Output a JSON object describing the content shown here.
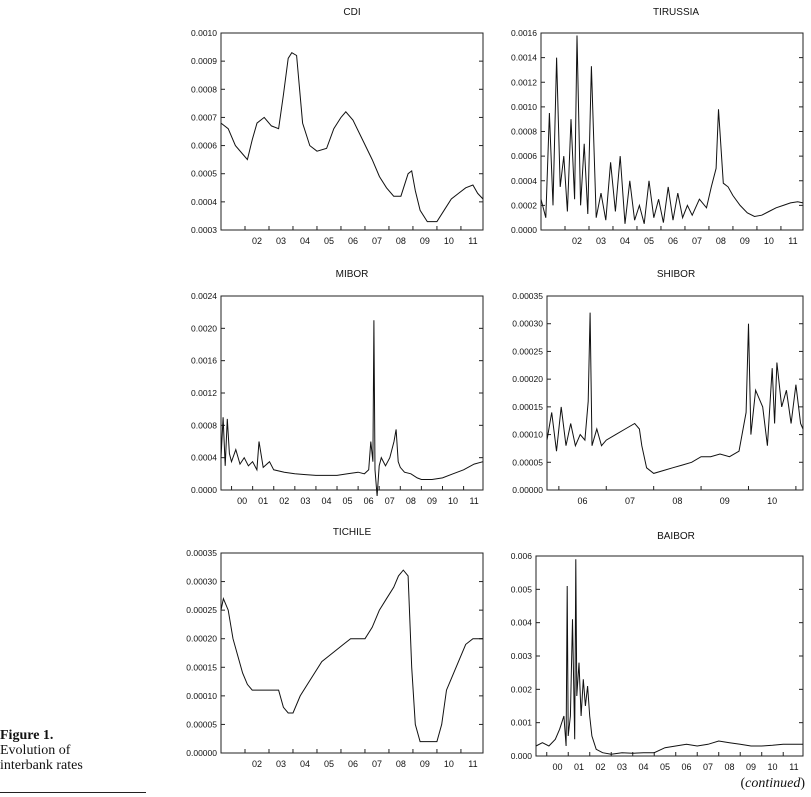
{
  "caption": {
    "figure": "Figure 1.",
    "line1": "Evolution of",
    "line2": "interbank rates"
  },
  "continued": {
    "open": "(",
    "word": "continued",
    "close": ")"
  },
  "chart_data": [
    {
      "type": "line",
      "title": "CDI",
      "ylim": [
        0.0003,
        0.001
      ],
      "yticks": [
        "0.0003",
        "0.0004",
        "0.0005",
        "0.0006",
        "0.0007",
        "0.0008",
        "0.0009",
        "0.0010"
      ],
      "xlim": [
        2001.0,
        2011.92
      ],
      "xticks": [
        {
          "label": "02",
          "x": 2002.0
        },
        {
          "label": "03",
          "x": 2003.0
        },
        {
          "label": "04",
          "x": 2004.0
        },
        {
          "label": "05",
          "x": 2005.0
        },
        {
          "label": "06",
          "x": 2006.0
        },
        {
          "label": "07",
          "x": 2007.0
        },
        {
          "label": "08",
          "x": 2008.0
        },
        {
          "label": "09",
          "x": 2009.0
        },
        {
          "label": "10",
          "x": 2010.0
        },
        {
          "label": "11",
          "x": 2011.0
        }
      ],
      "series": [
        {
          "x": [
            2001.0,
            2001.3,
            2001.6,
            2001.9,
            2002.1,
            2002.3,
            2002.5,
            2002.8,
            2003.1,
            2003.4,
            2003.6,
            2003.8,
            2003.95,
            2004.15,
            2004.4,
            2004.7,
            2005.0,
            2005.4,
            2005.7,
            2006.0,
            2006.2,
            2006.5,
            2006.9,
            2007.3,
            2007.6,
            2007.9,
            2008.2,
            2008.5,
            2008.8,
            2008.95,
            2009.1,
            2009.3,
            2009.6,
            2010.0,
            2010.3,
            2010.6,
            2010.9,
            2011.2,
            2011.5,
            2011.7,
            2011.92
          ],
          "y": [
            0.00068,
            0.00066,
            0.0006,
            0.00057,
            0.00055,
            0.00062,
            0.00068,
            0.0007,
            0.00067,
            0.00066,
            0.00078,
            0.00091,
            0.00093,
            0.00092,
            0.00068,
            0.0006,
            0.00058,
            0.00059,
            0.00066,
            0.0007,
            0.00072,
            0.00069,
            0.00062,
            0.00055,
            0.00049,
            0.00045,
            0.00042,
            0.00042,
            0.0005,
            0.00051,
            0.00044,
            0.00037,
            0.00033,
            0.00033,
            0.00037,
            0.00041,
            0.00043,
            0.00045,
            0.00046,
            0.00043,
            0.00041
          ]
        }
      ]
    },
    {
      "type": "line",
      "title": "TIRUSSIA",
      "ylim": [
        0.0,
        0.0016
      ],
      "yticks": [
        "0.0000",
        "0.0002",
        "0.0004",
        "0.0006",
        "0.0008",
        "0.0010",
        "0.0012",
        "0.0014",
        "0.0016"
      ],
      "xlim": [
        2001.0,
        2011.92
      ],
      "xticks": [
        {
          "label": "02",
          "x": 2002.0
        },
        {
          "label": "03",
          "x": 2003.0
        },
        {
          "label": "04",
          "x": 2004.0
        },
        {
          "label": "05",
          "x": 2005.0
        },
        {
          "label": "06",
          "x": 2006.0
        },
        {
          "label": "07",
          "x": 2007.0
        },
        {
          "label": "08",
          "x": 2008.0
        },
        {
          "label": "09",
          "x": 2009.0
        },
        {
          "label": "10",
          "x": 2010.0
        },
        {
          "label": "11",
          "x": 2011.0
        }
      ],
      "series": [
        {
          "x": [
            2001.0,
            2001.2,
            2001.35,
            2001.5,
            2001.65,
            2001.8,
            2001.95,
            2002.1,
            2002.25,
            2002.4,
            2002.5,
            2002.65,
            2002.8,
            2002.95,
            2003.1,
            2003.3,
            2003.5,
            2003.7,
            2003.9,
            2004.1,
            2004.3,
            2004.5,
            2004.7,
            2004.9,
            2005.1,
            2005.3,
            2005.5,
            2005.7,
            2005.9,
            2006.1,
            2006.3,
            2006.5,
            2006.7,
            2006.9,
            2007.1,
            2007.3,
            2007.6,
            2007.9,
            2008.1,
            2008.3,
            2008.4,
            2008.6,
            2008.8,
            2009.0,
            2009.3,
            2009.6,
            2009.9,
            2010.2,
            2010.5,
            2010.8,
            2011.1,
            2011.4,
            2011.7,
            2011.92
          ],
          "y": [
            0.00025,
            0.0001,
            0.00095,
            0.0002,
            0.0014,
            0.00035,
            0.0006,
            0.00015,
            0.0009,
            0.00025,
            0.00158,
            0.0002,
            0.0007,
            0.00013,
            0.00133,
            0.0001,
            0.0003,
            8e-05,
            0.00055,
            0.00015,
            0.0006,
            5e-05,
            0.0004,
            8e-05,
            0.0002,
            5e-05,
            0.0004,
            0.0001,
            0.00025,
            6e-05,
            0.00035,
            8e-05,
            0.0003,
            0.0001,
            0.0002,
            0.00012,
            0.00025,
            0.00018,
            0.00035,
            0.0005,
            0.00098,
            0.00038,
            0.00035,
            0.00028,
            0.0002,
            0.00014,
            0.00011,
            0.00012,
            0.00015,
            0.00018,
            0.0002,
            0.00022,
            0.00023,
            0.00022
          ]
        }
      ]
    },
    {
      "type": "line",
      "title": "MIBOR",
      "ylim": [
        0.0,
        0.0024
      ],
      "yticks": [
        "0.0000",
        "0.0004",
        "0.0008",
        "0.0012",
        "0.0016",
        "0.0020",
        "0.0024"
      ],
      "xlim": [
        1999.5,
        2011.92
      ],
      "xticks": [
        {
          "label": "00",
          "x": 2000.0
        },
        {
          "label": "01",
          "x": 2001.0
        },
        {
          "label": "02",
          "x": 2002.0
        },
        {
          "label": "03",
          "x": 2003.0
        },
        {
          "label": "04",
          "x": 2004.0
        },
        {
          "label": "05",
          "x": 2005.0
        },
        {
          "label": "06",
          "x": 2006.0
        },
        {
          "label": "07",
          "x": 2007.0
        },
        {
          "label": "08",
          "x": 2008.0
        },
        {
          "label": "09",
          "x": 2009.0
        },
        {
          "label": "10",
          "x": 2010.0
        },
        {
          "label": "11",
          "x": 2011.0
        }
      ],
      "series": [
        {
          "x": [
            1999.5,
            1999.6,
            1999.7,
            1999.8,
            1999.9,
            2000.0,
            2000.2,
            2000.4,
            2000.6,
            2000.8,
            2001.0,
            2001.2,
            2001.3,
            2001.5,
            2001.8,
            2002.0,
            2002.5,
            2003.0,
            2003.5,
            2004.0,
            2004.5,
            2005.0,
            2005.5,
            2006.0,
            2006.3,
            2006.5,
            2006.6,
            2006.7,
            2006.75,
            2006.8,
            2006.9,
            2007.0,
            2007.1,
            2007.3,
            2007.5,
            2007.7,
            2007.8,
            2007.9,
            2008.0,
            2008.2,
            2008.5,
            2008.8,
            2009.0,
            2009.5,
            2010.0,
            2010.5,
            2011.0,
            2011.5,
            2011.92
          ],
          "y": [
            0.0004,
            0.0009,
            0.0003,
            0.00088,
            0.00045,
            0.00035,
            0.0005,
            0.00032,
            0.0004,
            0.0003,
            0.00035,
            0.00025,
            0.0006,
            0.00028,
            0.00035,
            0.00025,
            0.00022,
            0.0002,
            0.00019,
            0.00018,
            0.00018,
            0.00018,
            0.0002,
            0.00022,
            0.0002,
            0.00025,
            0.0006,
            0.00035,
            0.0021,
            0.00025,
            -0.0001,
            0.0003,
            0.0004,
            0.0003,
            0.0004,
            0.0006,
            0.00075,
            0.00035,
            0.00028,
            0.00022,
            0.0002,
            0.00015,
            0.00013,
            0.00013,
            0.00015,
            0.0002,
            0.00025,
            0.00032,
            0.00035
          ]
        }
      ]
    },
    {
      "type": "line",
      "title": "SHIBOR",
      "ylim": [
        0.0,
        0.00035
      ],
      "yticks": [
        "0.00000",
        "0.00005",
        "0.00010",
        "0.00015",
        "0.00020",
        "0.00025",
        "0.00030",
        "0.00035"
      ],
      "xlim": [
        2005.75,
        2011.15
      ],
      "xticks": [
        {
          "label": "06",
          "x": 2006.0
        },
        {
          "label": "07",
          "x": 2007.0
        },
        {
          "label": "08",
          "x": 2008.0
        },
        {
          "label": "09",
          "x": 2009.0
        },
        {
          "label": "10",
          "x": 2010.0
        },
        {
          "label": "11",
          "x": 2011.0
        }
      ],
      "series": [
        {
          "x": [
            2005.75,
            2005.85,
            2005.95,
            2006.05,
            2006.15,
            2006.25,
            2006.35,
            2006.45,
            2006.55,
            2006.62,
            2006.66,
            2006.7,
            2006.8,
            2006.9,
            2007.0,
            2007.2,
            2007.4,
            2007.6,
            2007.7,
            2007.75,
            2007.85,
            2008.0,
            2008.2,
            2008.4,
            2008.6,
            2008.8,
            2009.0,
            2009.2,
            2009.4,
            2009.6,
            2009.8,
            2009.95,
            2010.0,
            2010.05,
            2010.15,
            2010.3,
            2010.4,
            2010.5,
            2010.55,
            2010.6,
            2010.7,
            2010.8,
            2010.9,
            2011.0,
            2011.1,
            2011.15
          ],
          "y": [
            9e-05,
            0.00014,
            7e-05,
            0.00015,
            8e-05,
            0.00012,
            8e-05,
            0.0001,
            9e-05,
            0.00016,
            0.00032,
            8e-05,
            0.00011,
            8e-05,
            9e-05,
            0.0001,
            0.00011,
            0.00012,
            0.00011,
            8e-05,
            4e-05,
            3e-05,
            3.5e-05,
            4e-05,
            4.5e-05,
            5e-05,
            6e-05,
            6e-05,
            6.5e-05,
            6e-05,
            7e-05,
            0.00014,
            0.0003,
            0.0001,
            0.00018,
            0.00015,
            8e-05,
            0.00022,
            0.00012,
            0.00023,
            0.00015,
            0.00018,
            0.00012,
            0.00019,
            0.00012,
            0.00011
          ]
        }
      ]
    },
    {
      "type": "line",
      "title": "TICHILE",
      "ylim": [
        0.0,
        0.00035
      ],
      "yticks": [
        "0.00000",
        "0.00005",
        "0.00010",
        "0.00015",
        "0.00020",
        "0.00025",
        "0.00030",
        "0.00035"
      ],
      "xlim": [
        2001.0,
        2011.92
      ],
      "xticks": [
        {
          "label": "02",
          "x": 2002.0
        },
        {
          "label": "03",
          "x": 2003.0
        },
        {
          "label": "04",
          "x": 2004.0
        },
        {
          "label": "05",
          "x": 2005.0
        },
        {
          "label": "06",
          "x": 2006.0
        },
        {
          "label": "07",
          "x": 2007.0
        },
        {
          "label": "08",
          "x": 2008.0
        },
        {
          "label": "09",
          "x": 2009.0
        },
        {
          "label": "10",
          "x": 2010.0
        },
        {
          "label": "11",
          "x": 2011.0
        }
      ],
      "series": [
        {
          "x": [
            2001.0,
            2001.1,
            2001.3,
            2001.5,
            2001.7,
            2001.9,
            2002.1,
            2002.3,
            2002.6,
            2003.0,
            2003.4,
            2003.6,
            2003.8,
            2004.0,
            2004.3,
            2004.6,
            2004.9,
            2005.2,
            2005.5,
            2005.8,
            2006.1,
            2006.4,
            2006.7,
            2007.0,
            2007.3,
            2007.6,
            2007.9,
            2008.2,
            2008.4,
            2008.6,
            2008.8,
            2008.95,
            2009.1,
            2009.3,
            2009.6,
            2009.9,
            2010.0,
            2010.2,
            2010.4,
            2010.6,
            2010.9,
            2011.2,
            2011.5,
            2011.92
          ],
          "y": [
            0.00025,
            0.00027,
            0.00025,
            0.0002,
            0.00017,
            0.00014,
            0.00012,
            0.00011,
            0.00011,
            0.00011,
            0.00011,
            8e-05,
            7e-05,
            7e-05,
            0.0001,
            0.00012,
            0.00014,
            0.00016,
            0.00017,
            0.00018,
            0.00019,
            0.0002,
            0.0002,
            0.0002,
            0.00022,
            0.00025,
            0.00027,
            0.00029,
            0.00031,
            0.00032,
            0.00031,
            0.00015,
            5e-05,
            2e-05,
            2e-05,
            2e-05,
            2e-05,
            5e-05,
            0.00011,
            0.00013,
            0.00016,
            0.00019,
            0.0002,
            0.0002
          ]
        }
      ]
    },
    {
      "type": "line",
      "title": "BAIBOR",
      "ylim": [
        0.0,
        0.006
      ],
      "yticks": [
        "0.000",
        "0.001",
        "0.002",
        "0.003",
        "0.004",
        "0.005",
        "0.006"
      ],
      "xlim": [
        1999.5,
        2011.92
      ],
      "xticks": [
        {
          "label": "00",
          "x": 2000.0
        },
        {
          "label": "01",
          "x": 2001.0
        },
        {
          "label": "02",
          "x": 2002.0
        },
        {
          "label": "03",
          "x": 2003.0
        },
        {
          "label": "04",
          "x": 2004.0
        },
        {
          "label": "05",
          "x": 2005.0
        },
        {
          "label": "06",
          "x": 2006.0
        },
        {
          "label": "07",
          "x": 2007.0
        },
        {
          "label": "08",
          "x": 2008.0
        },
        {
          "label": "09",
          "x": 2009.0
        },
        {
          "label": "10",
          "x": 2010.0
        },
        {
          "label": "11",
          "x": 2011.0
        }
      ],
      "series": [
        {
          "x": [
            1999.5,
            1999.8,
            2000.1,
            2000.4,
            2000.6,
            2000.8,
            2000.9,
            2000.95,
            2001.0,
            2001.1,
            2001.2,
            2001.3,
            2001.35,
            2001.4,
            2001.5,
            2001.6,
            2001.7,
            2001.8,
            2001.9,
            2002.0,
            2002.1,
            2002.3,
            2002.6,
            2003.0,
            2003.5,
            2004.0,
            2004.5,
            2005.0,
            2005.5,
            2006.0,
            2006.5,
            2007.0,
            2007.5,
            2008.0,
            2008.5,
            2009.0,
            2009.5,
            2010.0,
            2010.5,
            2011.0,
            2011.5,
            2011.92
          ],
          "y": [
            0.0003,
            0.0004,
            0.0003,
            0.0005,
            0.0008,
            0.0012,
            0.0003,
            0.0051,
            0.0006,
            0.0012,
            0.0041,
            0.0005,
            0.0059,
            0.0018,
            0.0028,
            0.0012,
            0.0023,
            0.0015,
            0.0021,
            0.0012,
            0.0006,
            0.0002,
            0.0001,
            5e-05,
            0.0001,
            8e-05,
            0.0001,
            0.0001,
            0.00025,
            0.0003,
            0.00035,
            0.0003,
            0.00035,
            0.00045,
            0.0004,
            0.00035,
            0.0003,
            0.0003,
            0.00032,
            0.00035,
            0.00035,
            0.00035
          ]
        }
      ]
    }
  ]
}
